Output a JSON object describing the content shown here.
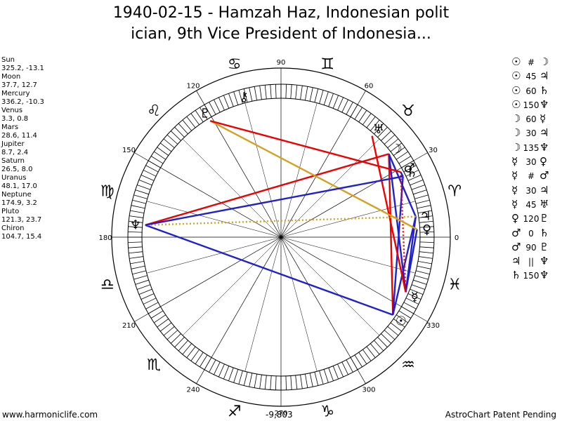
{
  "title": {
    "line1": "1940-02-15 - Hamzah Haz, Indonesian polit",
    "line2": "ician, 9th Vice President of Indonesia..."
  },
  "positions": [
    {
      "name": "Sun",
      "value": "325.2, -13.1"
    },
    {
      "name": "Moon",
      "value": "37.7, 12.7"
    },
    {
      "name": "Mercury",
      "value": "336.2, -10.3"
    },
    {
      "name": "Venus",
      "value": "3.3, 0.8"
    },
    {
      "name": "Mars",
      "value": "28.6, 11.4"
    },
    {
      "name": "Jupiter",
      "value": "8.7, 2.4"
    },
    {
      "name": "Saturn",
      "value": "26.5, 8.0"
    },
    {
      "name": "Uranus",
      "value": "48.1, 17.0"
    },
    {
      "name": "Neptune",
      "value": "174.9, 3.2"
    },
    {
      "name": "Pluto",
      "value": "121.3, 23.7"
    },
    {
      "name": "Chiron",
      "value": "104.7, 15.4"
    }
  ],
  "aspects": [
    {
      "p1": "☉",
      "asp": "#",
      "p2": "☽"
    },
    {
      "p1": "☉",
      "asp": "45",
      "p2": "♃"
    },
    {
      "p1": "☉",
      "asp": "60",
      "p2": "♄"
    },
    {
      "p1": "☉",
      "asp": "150",
      "p2": "♆"
    },
    {
      "p1": "☽",
      "asp": "60",
      "p2": "☿"
    },
    {
      "p1": "☽",
      "asp": "30",
      "p2": "♃"
    },
    {
      "p1": "☽",
      "asp": "135",
      "p2": "♆"
    },
    {
      "p1": "☿",
      "asp": "30",
      "p2": "♀"
    },
    {
      "p1": "☿",
      "asp": "#",
      "p2": "♂"
    },
    {
      "p1": "☿",
      "asp": "30",
      "p2": "♃"
    },
    {
      "p1": "☿",
      "asp": "45",
      "p2": "♅"
    },
    {
      "p1": "♀",
      "asp": "120",
      "p2": "♇"
    },
    {
      "p1": "♂",
      "asp": "0",
      "p2": "♄"
    },
    {
      "p1": "♂",
      "asp": "90",
      "p2": "♇"
    },
    {
      "p1": "♃",
      "asp": "||",
      "p2": "♆"
    },
    {
      "p1": "♄",
      "asp": "150",
      "p2": "♆"
    }
  ],
  "degree_labels": [
    "0",
    "30",
    "60",
    "90",
    "120",
    "150",
    "180",
    "210",
    "240",
    "270",
    "300",
    "330"
  ],
  "signs": [
    "♈",
    "♉",
    "♊",
    "♋",
    "♌",
    "♍",
    "♎",
    "♏",
    "♐",
    "♑",
    "♒",
    "♓"
  ],
  "planets": [
    {
      "key": "sun",
      "glyph": "☉",
      "lon": 325.2
    },
    {
      "key": "moon",
      "glyph": "☽",
      "lon": 37.7
    },
    {
      "key": "mercury",
      "glyph": "☿",
      "lon": 336.2
    },
    {
      "key": "venus",
      "glyph": "♀",
      "lon": 3.3
    },
    {
      "key": "mars",
      "glyph": "♂",
      "lon": 28.6
    },
    {
      "key": "jupiter",
      "glyph": "♃",
      "lon": 8.7
    },
    {
      "key": "saturn",
      "glyph": "♄",
      "lon": 26.5
    },
    {
      "key": "uranus",
      "glyph": "♅",
      "lon": 48.1
    },
    {
      "key": "neptune",
      "glyph": "♆",
      "lon": 174.9
    },
    {
      "key": "pluto",
      "glyph": "♇",
      "lon": 121.3
    },
    {
      "key": "chiron",
      "glyph": "⚷",
      "lon": 104.7
    }
  ],
  "aspect_lines": [
    {
      "from": "sun",
      "to": "moon",
      "color": "#ee0000",
      "style": "solid"
    },
    {
      "from": "sun",
      "to": "jupiter",
      "color": "#2020cc",
      "style": "solid"
    },
    {
      "from": "sun",
      "to": "saturn",
      "color": "#2020cc",
      "style": "solid"
    },
    {
      "from": "sun",
      "to": "neptune",
      "color": "#2020cc",
      "style": "solid"
    },
    {
      "from": "moon",
      "to": "mercury",
      "color": "#2020cc",
      "style": "solid"
    },
    {
      "from": "moon",
      "to": "jupiter",
      "color": "#2020cc",
      "style": "solid"
    },
    {
      "from": "moon",
      "to": "neptune",
      "color": "#ee0000",
      "style": "solid"
    },
    {
      "from": "mercury",
      "to": "venus",
      "color": "#2020cc",
      "style": "solid"
    },
    {
      "from": "mercury",
      "to": "mars",
      "color": "#ee0000",
      "style": "dotted"
    },
    {
      "from": "mercury",
      "to": "jupiter",
      "color": "#2020cc",
      "style": "solid"
    },
    {
      "from": "mercury",
      "to": "uranus",
      "color": "#ee0000",
      "style": "solid"
    },
    {
      "from": "venus",
      "to": "pluto",
      "color": "#d4a020",
      "style": "solid"
    },
    {
      "from": "mars",
      "to": "saturn",
      "color": "#2020cc",
      "style": "solid"
    },
    {
      "from": "mars",
      "to": "pluto",
      "color": "#ee0000",
      "style": "solid"
    },
    {
      "from": "jupiter",
      "to": "neptune",
      "color": "#d4a020",
      "style": "dotted"
    },
    {
      "from": "saturn",
      "to": "neptune",
      "color": "#2020cc",
      "style": "solid"
    }
  ],
  "center_value": "-9,803",
  "footer": {
    "left": "www.harmoniclife.com",
    "right": "AstroChart Patent Pending"
  }
}
